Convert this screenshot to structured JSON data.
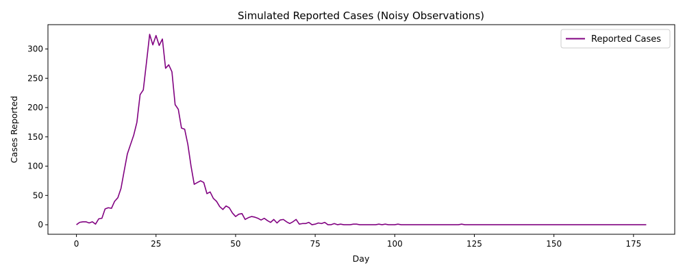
{
  "chart_data": {
    "type": "line",
    "title": "Simulated Reported Cases (Noisy Observations)",
    "xlabel": "Day",
    "ylabel": "Cases Reported",
    "xlim": [
      -8.95,
      187.95
    ],
    "ylim": [
      -16.3,
      341.5
    ],
    "xticks": [
      0,
      25,
      50,
      75,
      100,
      125,
      150,
      175
    ],
    "yticks": [
      0,
      50,
      100,
      150,
      200,
      250,
      300
    ],
    "grid": false,
    "legend": "top-right",
    "series": [
      {
        "name": "Reported Cases",
        "color": "#800080",
        "x": [
          0,
          1,
          2,
          3,
          4,
          5,
          6,
          7,
          8,
          9,
          10,
          11,
          12,
          13,
          14,
          15,
          16,
          17,
          18,
          19,
          20,
          21,
          22,
          23,
          24,
          25,
          26,
          27,
          28,
          29,
          30,
          31,
          32,
          33,
          34,
          35,
          36,
          37,
          38,
          39,
          40,
          41,
          42,
          43,
          44,
          45,
          46,
          47,
          48,
          49,
          50,
          51,
          52,
          53,
          54,
          55,
          56,
          57,
          58,
          59,
          60,
          61,
          62,
          63,
          64,
          65,
          66,
          67,
          68,
          69,
          70,
          71,
          72,
          73,
          74,
          75,
          76,
          77,
          78,
          79,
          80,
          81,
          82,
          83,
          84,
          85,
          86,
          87,
          88,
          89,
          90,
          91,
          92,
          93,
          94,
          95,
          96,
          97,
          98,
          99,
          100,
          101,
          102,
          103,
          104,
          105,
          106,
          107,
          108,
          109,
          110,
          111,
          112,
          113,
          114,
          115,
          116,
          117,
          118,
          119,
          120,
          121,
          122,
          123,
          124,
          125,
          126,
          127,
          128,
          129,
          130,
          131,
          132,
          133,
          134,
          135,
          136,
          137,
          138,
          139,
          140,
          141,
          142,
          143,
          144,
          145,
          146,
          147,
          148,
          149,
          150,
          151,
          152,
          153,
          154,
          155,
          156,
          157,
          158,
          159,
          160,
          161,
          162,
          163,
          164,
          165,
          166,
          167,
          168,
          169,
          170,
          171,
          172,
          173,
          174,
          175,
          176,
          177,
          178,
          179
        ],
        "values": [
          0,
          4,
          5,
          5,
          3,
          5,
          1,
          10,
          11,
          27,
          29,
          28,
          40,
          46,
          62,
          92,
          121,
          137,
          153,
          175,
          222,
          230,
          277,
          325,
          307,
          323,
          306,
          317,
          267,
          273,
          261,
          205,
          197,
          165,
          163,
          137,
          100,
          69,
          72,
          75,
          72,
          53,
          56,
          45,
          40,
          31,
          26,
          32,
          29,
          20,
          14,
          18,
          19,
          9,
          12,
          14,
          13,
          11,
          8,
          11,
          7,
          4,
          9,
          3,
          8,
          9,
          5,
          2,
          5,
          9,
          1,
          2,
          2,
          4,
          0,
          1,
          3,
          2,
          4,
          0,
          0,
          2,
          0,
          1,
          0,
          0,
          0,
          1,
          1,
          0,
          0,
          0,
          0,
          0,
          0,
          1,
          0,
          1,
          0,
          0,
          0,
          1,
          0,
          0,
          0,
          0,
          0,
          0,
          0,
          0,
          0,
          0,
          0,
          0,
          0,
          0,
          0,
          0,
          0,
          0,
          0,
          1,
          0,
          0,
          0,
          0,
          0,
          0,
          0,
          0,
          0,
          0,
          0,
          0,
          0,
          0,
          0,
          0,
          0,
          0,
          0,
          0,
          0,
          0,
          0,
          0,
          0,
          0,
          0,
          0,
          0,
          0,
          0,
          0,
          0,
          0,
          0,
          0,
          0,
          0,
          0,
          0,
          0,
          0,
          0,
          0,
          0,
          0,
          0,
          0,
          0,
          0,
          0,
          0,
          0,
          0,
          0,
          0,
          0,
          0
        ]
      }
    ]
  }
}
